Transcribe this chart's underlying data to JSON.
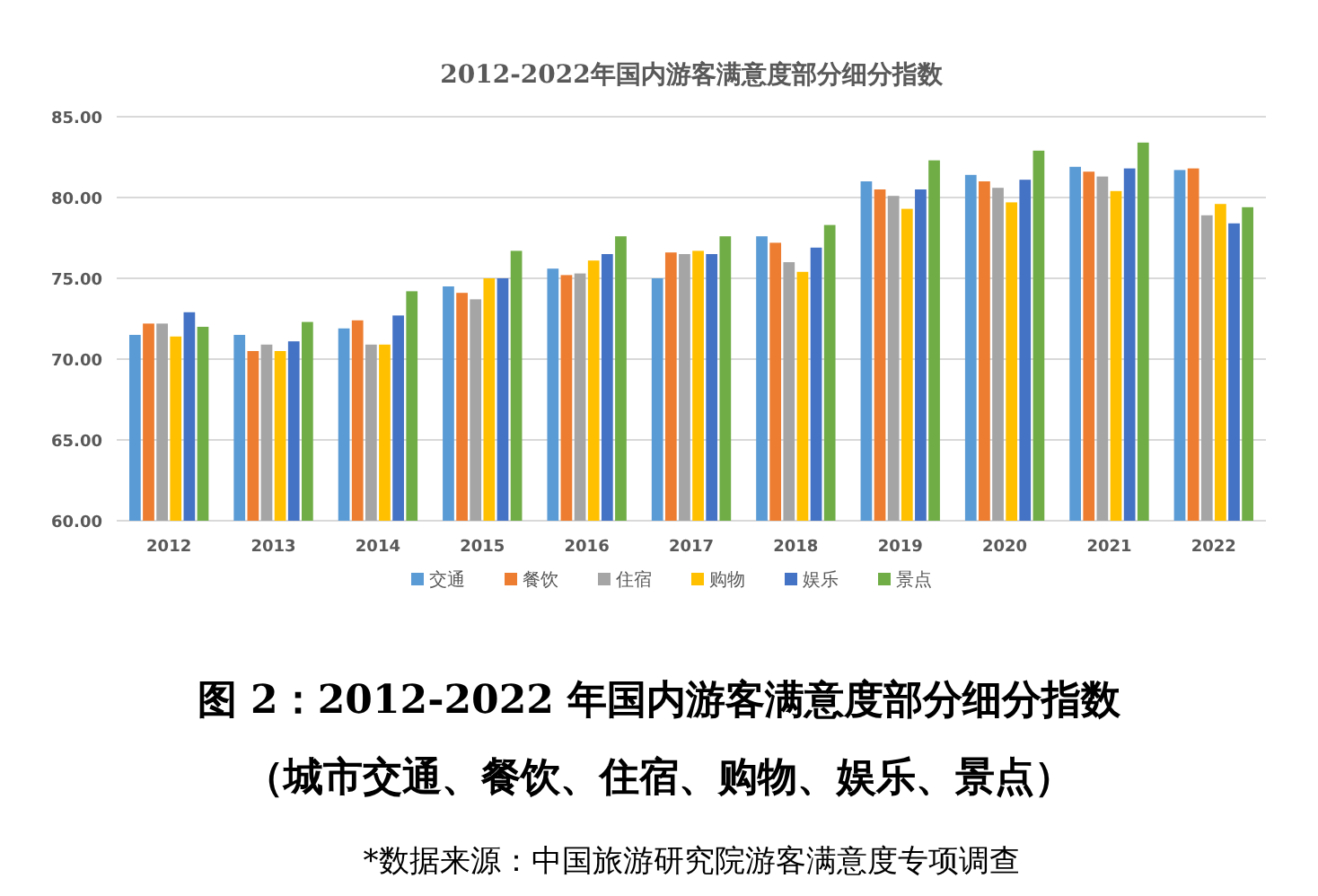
{
  "chart_data": {
    "type": "bar",
    "title": "2012-2022年国内游客满意度部分细分指数",
    "categories": [
      "2012",
      "2013",
      "2014",
      "2015",
      "2016",
      "2017",
      "2018",
      "2019",
      "2020",
      "2021",
      "2022"
    ],
    "series": [
      {
        "name": "交通",
        "color": "#5b9bd5",
        "values": [
          71.5,
          71.5,
          71.9,
          74.5,
          75.6,
          75.0,
          77.6,
          81.0,
          81.4,
          81.9,
          81.7
        ]
      },
      {
        "name": "餐饮",
        "color": "#ed7d31",
        "values": [
          72.2,
          70.5,
          72.4,
          74.1,
          75.2,
          76.6,
          77.2,
          80.5,
          81.0,
          81.6,
          81.8
        ]
      },
      {
        "name": "住宿",
        "color": "#a5a5a5",
        "values": [
          72.2,
          70.9,
          70.9,
          73.7,
          75.3,
          76.5,
          76.0,
          80.1,
          80.6,
          81.3,
          78.9
        ]
      },
      {
        "name": "购物",
        "color": "#ffc000",
        "values": [
          71.4,
          70.5,
          70.9,
          75.0,
          76.1,
          76.7,
          75.4,
          79.3,
          79.7,
          80.4,
          79.6
        ]
      },
      {
        "name": "娱乐",
        "color": "#4472c4",
        "values": [
          72.9,
          71.1,
          72.7,
          75.0,
          76.5,
          76.5,
          76.9,
          80.5,
          81.1,
          81.8,
          78.4
        ]
      },
      {
        "name": "景点",
        "color": "#70ad47",
        "values": [
          72.0,
          72.3,
          74.2,
          76.7,
          77.6,
          77.6,
          78.3,
          82.3,
          82.9,
          83.4,
          79.4
        ]
      }
    ],
    "ylim": [
      60,
      85
    ],
    "yticks": [
      {
        "value": 60,
        "label": "60.00"
      },
      {
        "value": 65,
        "label": "65.00"
      },
      {
        "value": 70,
        "label": "70.00"
      },
      {
        "value": 75,
        "label": "75.00"
      },
      {
        "value": 80,
        "label": "80.00"
      },
      {
        "value": 85,
        "label": "85.00"
      }
    ],
    "grid": "y",
    "legend": "bottom",
    "annotations": [
      "图 2：2012-2022 年国内游客满意度部分细分指数",
      "（城市交通、餐饮、住宿、购物、娱乐、景点）",
      "*数据来源：中国旅游研究院游客满意度专项调查"
    ]
  }
}
